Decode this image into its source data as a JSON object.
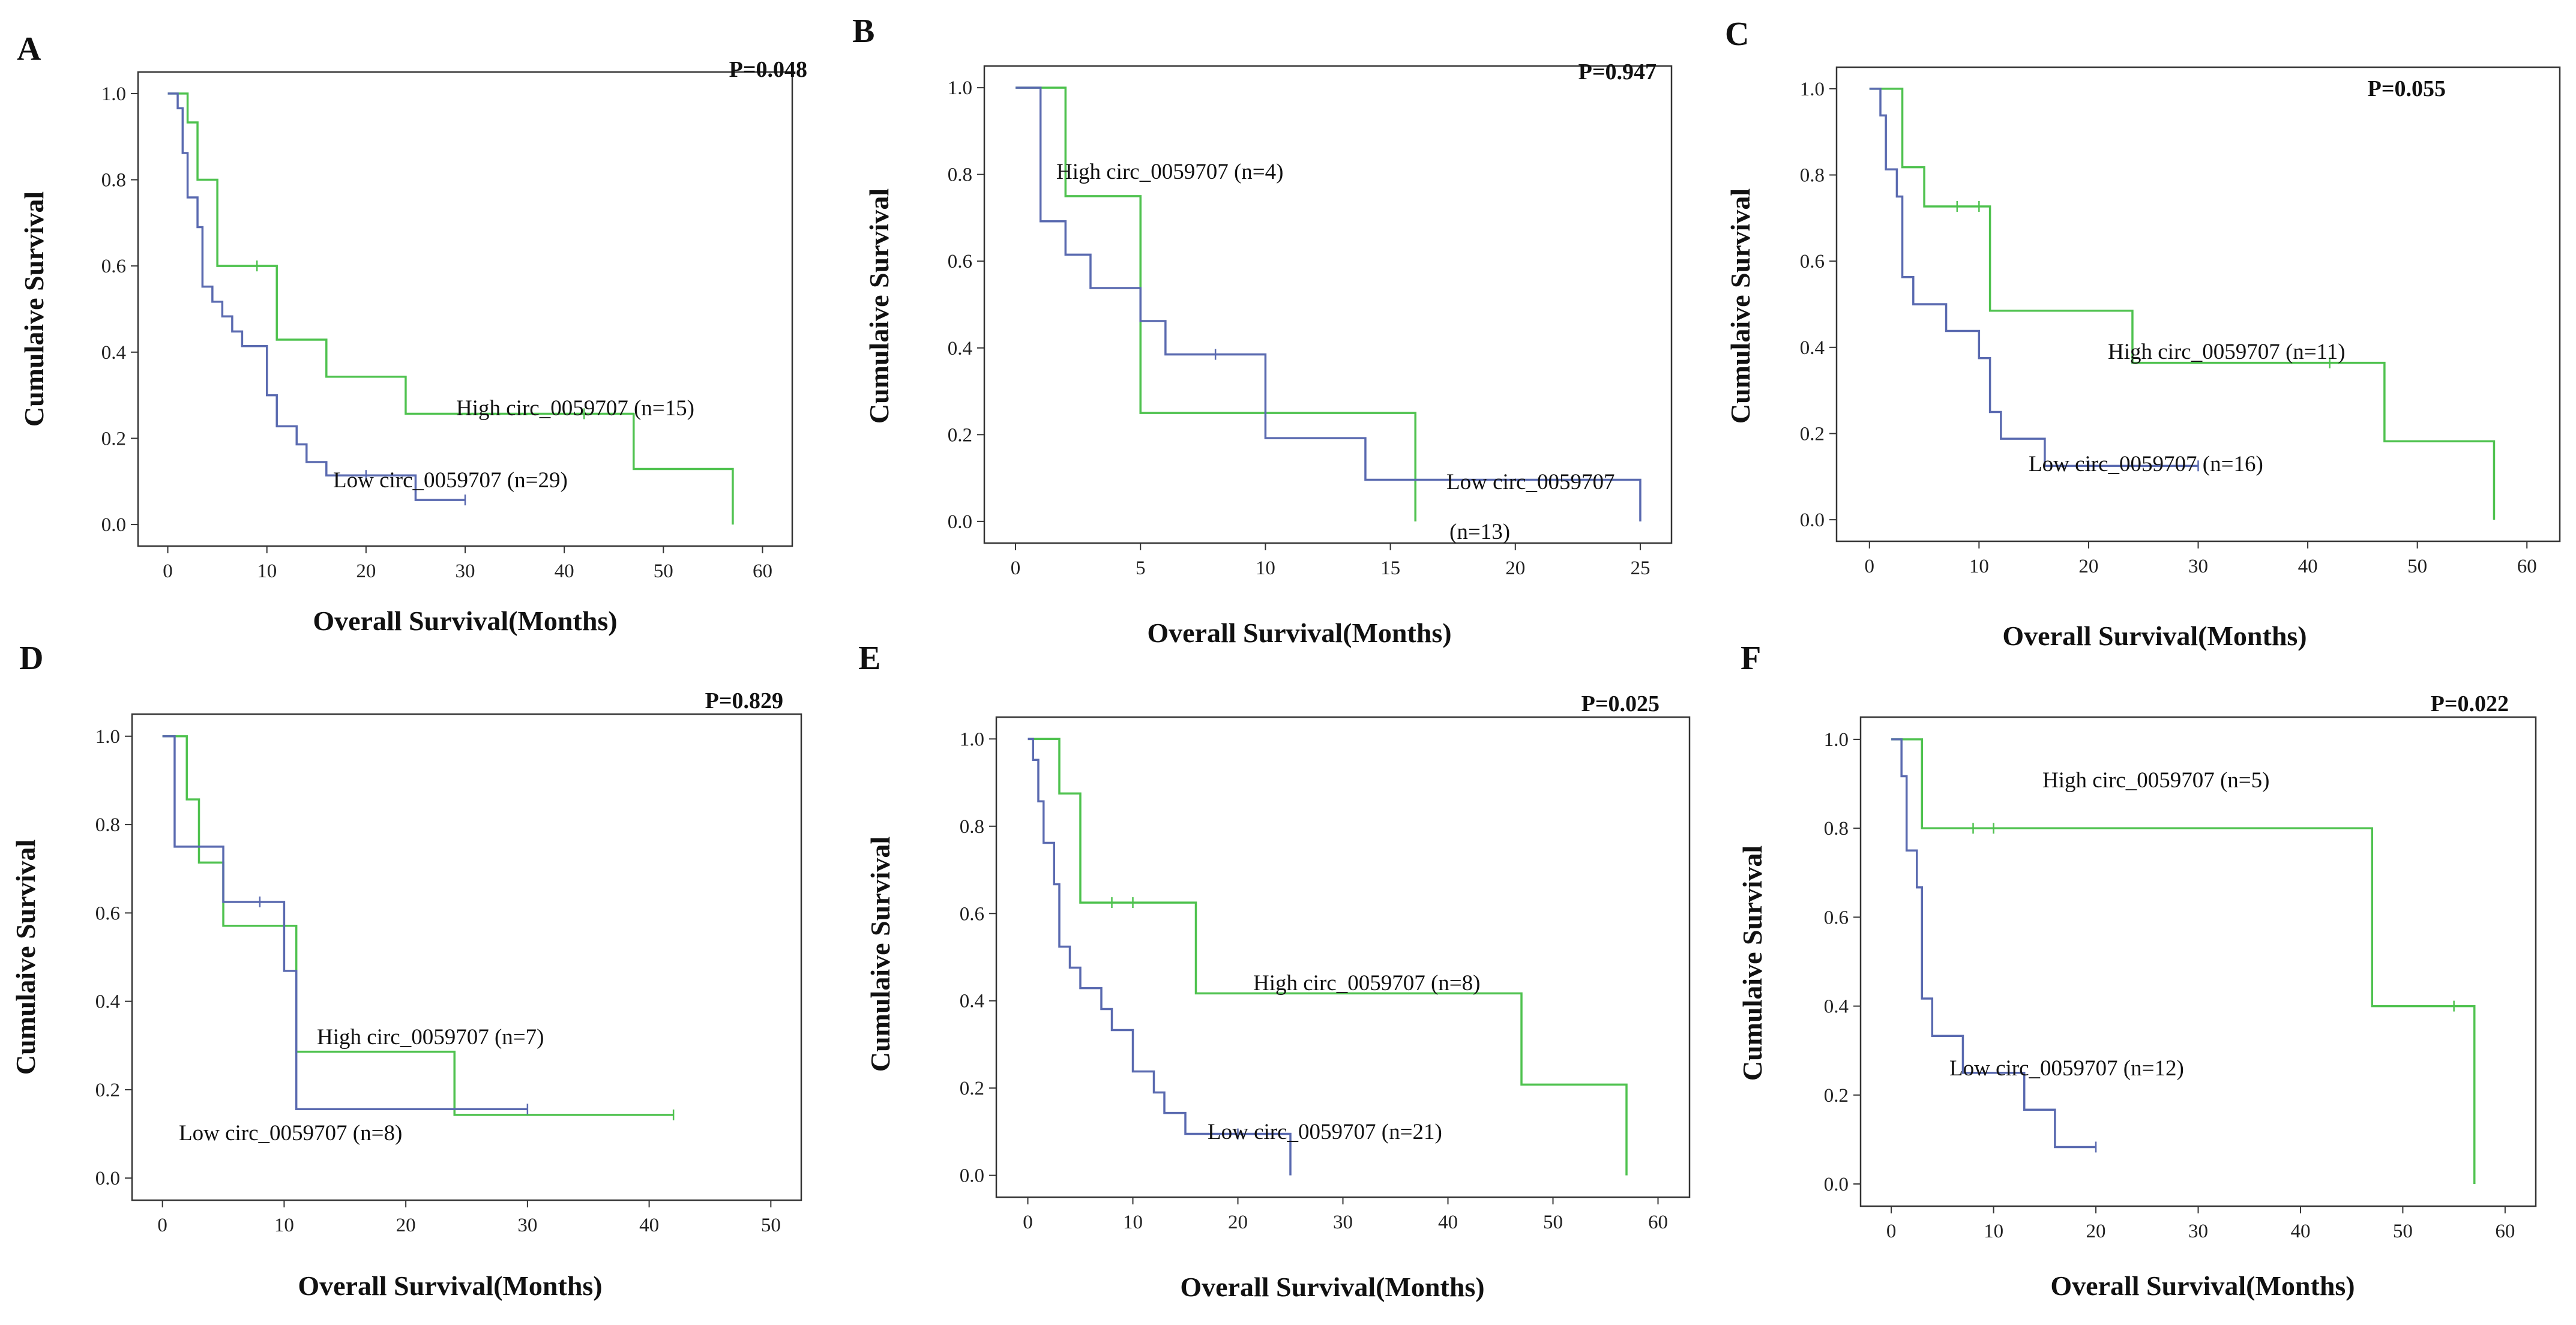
{
  "colors": {
    "high": "#4fc24f",
    "low": "#5a6ab0",
    "axis": "#333333"
  },
  "chart_data": [
    {
      "panel": "A",
      "type": "line",
      "p_value": "P=0.048",
      "xlabel": "Overall Survival(Months)",
      "ylabel": "Cumulaive Survival",
      "xlim": [
        0,
        60
      ],
      "ylim": [
        0,
        1
      ],
      "xticks": [
        "0",
        "10",
        "20",
        "30",
        "40",
        "50",
        "60"
      ],
      "yticks": [
        "0.0",
        "0.2",
        "0.4",
        "0.6",
        "0.8",
        "1.0"
      ],
      "series": [
        {
          "name": "High circ_0059707",
          "label": "High circ_0059707 (n=15)",
          "color": "high",
          "steps": [
            [
              0,
              1.0
            ],
            [
              2,
              0.933
            ],
            [
              3,
              0.8
            ],
            [
              5,
              0.6
            ],
            [
              11,
              0.429
            ],
            [
              16,
              0.343
            ],
            [
              24,
              0.257
            ],
            [
              47,
              0.129
            ],
            [
              57,
              0.0
            ]
          ],
          "censored": [
            [
              9,
              0.6
            ],
            [
              42,
              0.257
            ]
          ]
        },
        {
          "name": "Low circ_0059707",
          "label": "Low circ_0059707 (n=29)",
          "color": "low",
          "steps": [
            [
              0,
              1.0
            ],
            [
              1,
              0.966
            ],
            [
              1.5,
              0.862
            ],
            [
              2,
              0.759
            ],
            [
              3,
              0.69
            ],
            [
              3.5,
              0.552
            ],
            [
              4.5,
              0.517
            ],
            [
              5.5,
              0.483
            ],
            [
              6.5,
              0.448
            ],
            [
              7.5,
              0.414
            ],
            [
              10,
              0.3
            ],
            [
              11,
              0.228
            ],
            [
              13,
              0.186
            ],
            [
              14,
              0.145
            ],
            [
              16,
              0.114
            ],
            [
              25,
              0.057
            ],
            [
              30,
              0.057
            ]
          ],
          "censored": [
            [
              20,
              0.114
            ],
            [
              30,
              0.057
            ]
          ]
        }
      ]
    },
    {
      "panel": "B",
      "type": "line",
      "p_value": "P=0.947",
      "xlabel": "Overall Survival(Months)",
      "ylabel": "Cumulaive Survival",
      "xlim": [
        0,
        25
      ],
      "ylim": [
        0,
        1
      ],
      "xticks": [
        "0",
        "5",
        "10",
        "15",
        "20",
        "25"
      ],
      "yticks": [
        "0.0",
        "0.2",
        "0.4",
        "0.6",
        "0.8",
        "1.0"
      ],
      "series": [
        {
          "name": "High circ_0059707",
          "label": "High circ_0059707 (n=4)",
          "color": "high",
          "steps": [
            [
              0,
              1.0
            ],
            [
              2,
              0.75
            ],
            [
              5,
              0.25
            ],
            [
              16,
              0.0
            ]
          ],
          "censored": []
        },
        {
          "name": "Low circ_0059707",
          "label": "Low circ_0059707",
          "label2": "(n=13)",
          "color": "low",
          "steps": [
            [
              0,
              1.0
            ],
            [
              1,
              0.692
            ],
            [
              2,
              0.615
            ],
            [
              3,
              0.538
            ],
            [
              5,
              0.462
            ],
            [
              6,
              0.385
            ],
            [
              10,
              0.192
            ],
            [
              14,
              0.096
            ],
            [
              25,
              0.0
            ]
          ],
          "censored": [
            [
              8,
              0.385
            ]
          ]
        }
      ]
    },
    {
      "panel": "C",
      "type": "line",
      "p_value": "P=0.055",
      "xlabel": "Overall Survival(Months)",
      "ylabel": "Cumulaive Survival",
      "xlim": [
        0,
        60
      ],
      "ylim": [
        0,
        1
      ],
      "xticks": [
        "0",
        "10",
        "20",
        "30",
        "40",
        "50",
        "60"
      ],
      "yticks": [
        "0.0",
        "0.2",
        "0.4",
        "0.6",
        "0.8",
        "1.0"
      ],
      "series": [
        {
          "name": "High circ_0059707",
          "label": "High circ_0059707 (n=11)",
          "color": "high",
          "steps": [
            [
              0,
              1.0
            ],
            [
              3,
              0.818
            ],
            [
              5,
              0.727
            ],
            [
              11,
              0.485
            ],
            [
              24,
              0.364
            ],
            [
              47,
              0.182
            ],
            [
              57,
              0.0
            ]
          ],
          "censored": [
            [
              8,
              0.727
            ],
            [
              10,
              0.727
            ],
            [
              42,
              0.364
            ]
          ]
        },
        {
          "name": "Low circ_0059707",
          "label": "Low circ_0059707 (n=16)",
          "color": "low",
          "steps": [
            [
              0,
              1.0
            ],
            [
              1,
              0.938
            ],
            [
              1.5,
              0.813
            ],
            [
              2.5,
              0.75
            ],
            [
              3,
              0.563
            ],
            [
              4,
              0.5
            ],
            [
              7,
              0.438
            ],
            [
              10,
              0.375
            ],
            [
              11,
              0.25
            ],
            [
              12,
              0.188
            ],
            [
              16,
              0.125
            ],
            [
              30,
              0.125
            ]
          ],
          "censored": [
            [
              20,
              0.125
            ],
            [
              30,
              0.125
            ]
          ]
        }
      ]
    },
    {
      "panel": "D",
      "type": "line",
      "p_value": "P=0.829",
      "xlabel": "Overall Survival(Months)",
      "ylabel": "Cumulaive Survival",
      "xlim": [
        0,
        50
      ],
      "ylim": [
        0,
        1
      ],
      "xticks": [
        "0",
        "10",
        "20",
        "30",
        "40",
        "50"
      ],
      "yticks": [
        "0.0",
        "0.2",
        "0.4",
        "0.6",
        "0.8",
        "1.0"
      ],
      "series": [
        {
          "name": "High circ_0059707",
          "label": "High circ_0059707 (n=7)",
          "color": "high",
          "steps": [
            [
              0,
              1.0
            ],
            [
              2,
              0.857
            ],
            [
              3,
              0.714
            ],
            [
              5,
              0.571
            ],
            [
              11,
              0.286
            ],
            [
              24,
              0.143
            ],
            [
              42,
              0.143
            ]
          ],
          "censored": [
            [
              42,
              0.143
            ]
          ]
        },
        {
          "name": "Low circ_0059707",
          "label": "Low circ_0059707 (n=8)",
          "color": "low",
          "steps": [
            [
              0,
              1.0
            ],
            [
              1,
              0.75
            ],
            [
              5,
              0.625
            ],
            [
              10,
              0.469
            ],
            [
              11,
              0.156
            ],
            [
              30,
              0.156
            ]
          ],
          "censored": [
            [
              8,
              0.625
            ],
            [
              30,
              0.156
            ]
          ]
        }
      ]
    },
    {
      "panel": "E",
      "type": "line",
      "p_value": "P=0.025",
      "xlabel": "Overall Survival(Months)",
      "ylabel": "Cumulaive Survival",
      "xlim": [
        0,
        60
      ],
      "ylim": [
        0,
        1
      ],
      "xticks": [
        "0",
        "10",
        "20",
        "30",
        "40",
        "50",
        "60"
      ],
      "yticks": [
        "0.0",
        "0.2",
        "0.4",
        "0.6",
        "0.8",
        "1.0"
      ],
      "series": [
        {
          "name": "High circ_0059707",
          "label": "High circ_0059707 (n=8)",
          "color": "high",
          "steps": [
            [
              0,
              1.0
            ],
            [
              3,
              0.875
            ],
            [
              5,
              0.625
            ],
            [
              16,
              0.417
            ],
            [
              47,
              0.208
            ],
            [
              57,
              0.0
            ]
          ],
          "censored": [
            [
              8,
              0.625
            ],
            [
              10,
              0.625
            ]
          ]
        },
        {
          "name": "Low circ_0059707",
          "label": "Low circ_0059707 (n=21)",
          "color": "low",
          "steps": [
            [
              0,
              1.0
            ],
            [
              0.5,
              0.952
            ],
            [
              1,
              0.857
            ],
            [
              1.5,
              0.762
            ],
            [
              2.5,
              0.667
            ],
            [
              3,
              0.524
            ],
            [
              4,
              0.476
            ],
            [
              5,
              0.429
            ],
            [
              7,
              0.381
            ],
            [
              8,
              0.333
            ],
            [
              10,
              0.238
            ],
            [
              12,
              0.19
            ],
            [
              13,
              0.143
            ],
            [
              15,
              0.095
            ],
            [
              25,
              0.0
            ]
          ],
          "censored": [
            [
              20,
              0.095
            ]
          ]
        }
      ]
    },
    {
      "panel": "F",
      "type": "line",
      "p_value": "P=0.022",
      "xlabel": "Overall Survival(Months)",
      "ylabel": "Cumulaive Survival",
      "xlim": [
        0,
        60
      ],
      "ylim": [
        0,
        1
      ],
      "xticks": [
        "0",
        "10",
        "20",
        "30",
        "40",
        "50",
        "60"
      ],
      "yticks": [
        "0.0",
        "0.2",
        "0.4",
        "0.6",
        "0.8",
        "1.0"
      ],
      "series": [
        {
          "name": "High circ_0059707",
          "label": "High circ_0059707 (n=5)",
          "color": "high",
          "steps": [
            [
              0,
              1.0
            ],
            [
              3,
              0.8
            ],
            [
              47,
              0.4
            ],
            [
              57,
              0.0
            ]
          ],
          "censored": [
            [
              8,
              0.8
            ],
            [
              10,
              0.8
            ],
            [
              55,
              0.4
            ]
          ]
        },
        {
          "name": "Low circ_0059707",
          "label": "Low circ_0059707 (n=12)",
          "color": "low",
          "steps": [
            [
              0,
              1.0
            ],
            [
              1,
              0.917
            ],
            [
              1.5,
              0.75
            ],
            [
              2.5,
              0.667
            ],
            [
              3,
              0.417
            ],
            [
              4,
              0.333
            ],
            [
              7,
              0.25
            ],
            [
              13,
              0.167
            ],
            [
              16,
              0.083
            ],
            [
              20,
              0.083
            ]
          ],
          "censored": [
            [
              20,
              0.083
            ]
          ]
        }
      ]
    }
  ]
}
